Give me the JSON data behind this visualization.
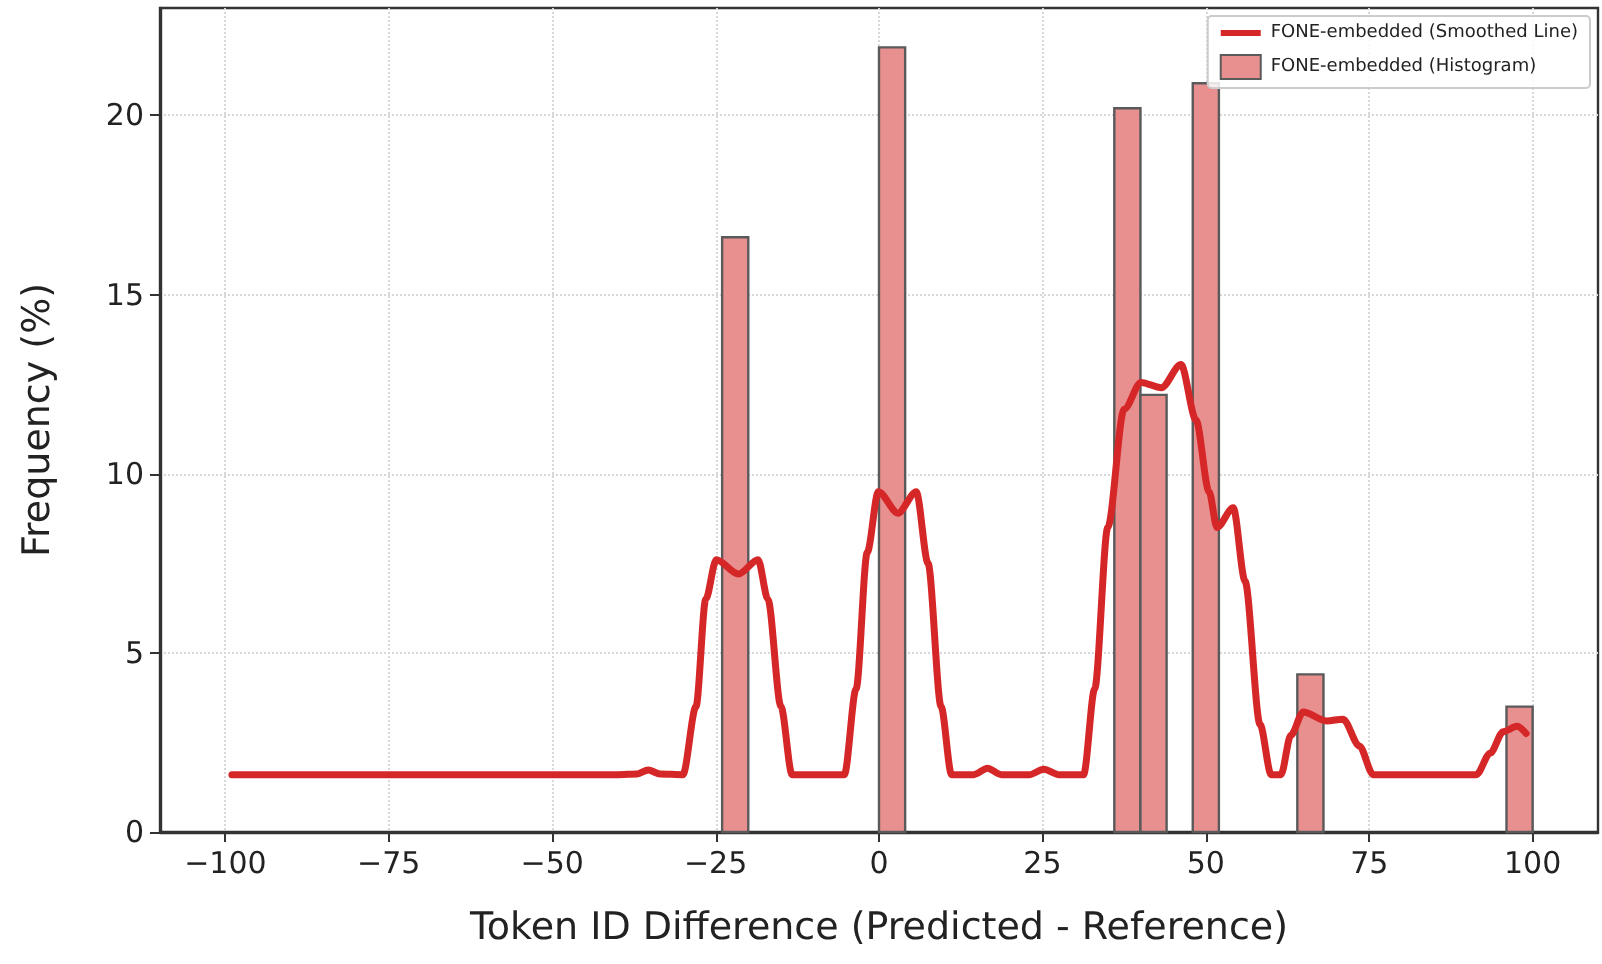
{
  "chart_data": {
    "type": "histogram",
    "xlabel": "Token ID Difference (Predicted - Reference)",
    "ylabel": "Frequency (%)",
    "bins": [
      -24,
      -20,
      -16,
      -12,
      -8,
      -4,
      0,
      4,
      8,
      12,
      16,
      20,
      24,
      28,
      32,
      36,
      40,
      44,
      48,
      52,
      56,
      60,
      64,
      68,
      72,
      76,
      80,
      84,
      88,
      92,
      96,
      100
    ],
    "series": [
      {
        "name": "FONE-embedded (Histogram)",
        "color": "#e8908f",
        "values": [
          16.6,
          0,
          0,
          0,
          0,
          0,
          21.9,
          0,
          0,
          0,
          0,
          0,
          0,
          0,
          0,
          20.2,
          12.2,
          0,
          20.9,
          0,
          0,
          0,
          4.4,
          0,
          0,
          0,
          0,
          0,
          0,
          0,
          3.5
        ]
      },
      {
        "type": "line",
        "name": "FONE-embedded (Smoothed Line)",
        "color": "#d62728",
        "x": [
          -99,
          -60,
          -40,
          -37,
          -35.3,
          -33.5,
          -30,
          -28,
          -26.5,
          -24.9,
          -21.5,
          -18.5,
          -17,
          -15,
          -13.3,
          -5.3,
          -3.5,
          -1.8,
          -0.1,
          2.9,
          5.7,
          7.5,
          9.5,
          11.1,
          14.5,
          16.6,
          18.7,
          23,
          25.2,
          27.5,
          31.3,
          33,
          35,
          37.5,
          40.1,
          43.2,
          46.2,
          48.5,
          50.5,
          51.7,
          54.2,
          56,
          58.3,
          60,
          61.5,
          63,
          64.9,
          68.5,
          71,
          73.5,
          75.6,
          85,
          91.4,
          93.5,
          95.5,
          97.6,
          99
        ],
        "values": [
          1.6,
          1.6,
          1.6,
          1.62,
          1.73,
          1.62,
          1.6,
          3.5,
          6.5,
          7.6,
          7.2,
          7.6,
          6.5,
          3.5,
          1.6,
          1.6,
          4,
          7.8,
          9.5,
          8.9,
          9.5,
          7.5,
          3.5,
          1.6,
          1.6,
          1.78,
          1.6,
          1.6,
          1.75,
          1.6,
          1.6,
          4,
          8.5,
          11.8,
          12.55,
          12.4,
          13.05,
          11.5,
          9.5,
          8.5,
          9.05,
          7,
          3,
          1.6,
          1.6,
          2.7,
          3.35,
          3.1,
          3.15,
          2.4,
          1.6,
          1.6,
          1.6,
          2.2,
          2.8,
          2.95,
          2.75
        ]
      }
    ],
    "xlim": [
      -110,
      110
    ],
    "xticks": [
      -100,
      -75,
      -50,
      -25,
      0,
      25,
      50,
      75,
      100
    ],
    "ylim": [
      0,
      23
    ],
    "yticks": [
      0,
      5,
      10,
      15,
      20
    ],
    "grid": true,
    "legend": "top right"
  }
}
